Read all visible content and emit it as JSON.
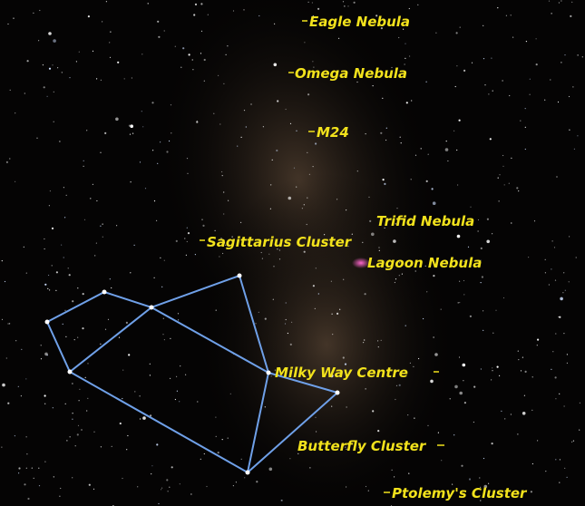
{
  "labels": [
    "Eagle Nebula",
    "Omega Nebula",
    "M24",
    "Trifid Nebula",
    "Sagittarius Cluster",
    "Lagoon Nebula",
    "Milky Way Centre",
    "Butterfly Cluster",
    "Ptolemy's Cluster"
  ]
}
